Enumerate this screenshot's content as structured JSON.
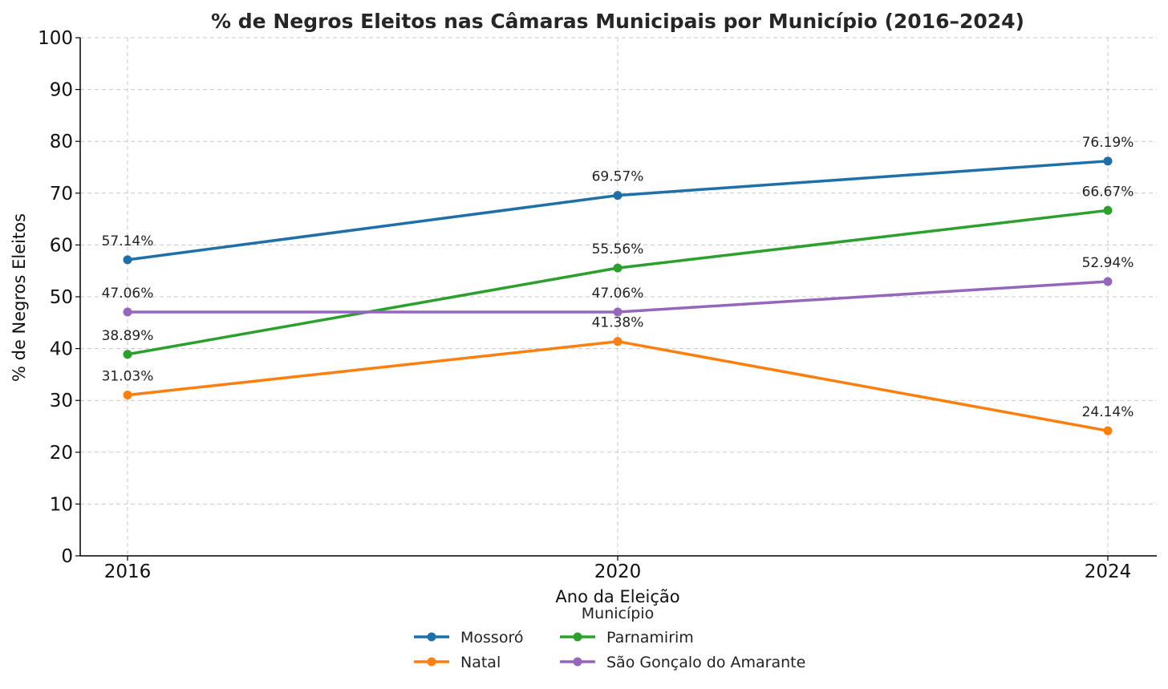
{
  "chart_data": {
    "type": "line",
    "title": "% de Negros Eleitos nas Câmaras Municipais por Município (2016–2024)",
    "xlabel": "Ano da Eleição",
    "ylabel": "% de Negros Eleitos",
    "categories": [
      "2016",
      "2020",
      "2024"
    ],
    "ylim": [
      0,
      100
    ],
    "yticks": [
      "0",
      "10",
      "20",
      "30",
      "40",
      "50",
      "60",
      "70",
      "80",
      "90",
      "100"
    ],
    "grid": true,
    "legend": {
      "title": "Município",
      "placement": "bottom-center"
    },
    "series": [
      {
        "name": "Mossoró",
        "color": "#1f6fa8",
        "values": [
          57.14,
          69.57,
          76.19
        ],
        "labels": [
          "57.14%",
          "69.57%",
          "76.19%"
        ]
      },
      {
        "name": "Natal",
        "color": "#ff7f0e",
        "values": [
          31.03,
          41.38,
          24.14
        ],
        "labels": [
          "31.03%",
          "41.38%",
          "24.14%"
        ]
      },
      {
        "name": "Parnamirim",
        "color": "#2ca02c",
        "values": [
          38.89,
          55.56,
          66.67
        ],
        "labels": [
          "38.89%",
          "55.56%",
          "66.67%"
        ]
      },
      {
        "name": "São Gonçalo do Amarante",
        "color": "#9467bd",
        "values": [
          47.06,
          47.06,
          52.94
        ],
        "labels": [
          "47.06%",
          "47.06%",
          "52.94%"
        ]
      }
    ]
  }
}
